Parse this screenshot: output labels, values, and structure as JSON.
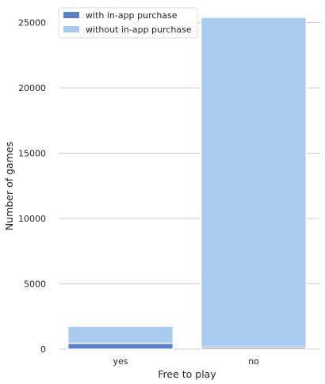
{
  "chart_data": {
    "type": "bar",
    "stacked": "overlay",
    "categories": [
      "yes",
      "no"
    ],
    "series": [
      {
        "name": "without in-app purchase",
        "values": [
          1750,
          25400
        ],
        "color": "#aacaee"
      },
      {
        "name": "with in-app purchase",
        "values": [
          450,
          150
        ],
        "color": "#5b7fc4"
      }
    ],
    "xlabel": "Free to play",
    "ylabel": "Number of games",
    "ylim": [
      0,
      26000
    ],
    "yticks": [
      0,
      5000,
      10000,
      15000,
      20000,
      25000
    ],
    "grid": true,
    "legend": {
      "placement": "top-left",
      "entries": [
        "with in-app purchase",
        "without in-app purchase"
      ]
    }
  }
}
